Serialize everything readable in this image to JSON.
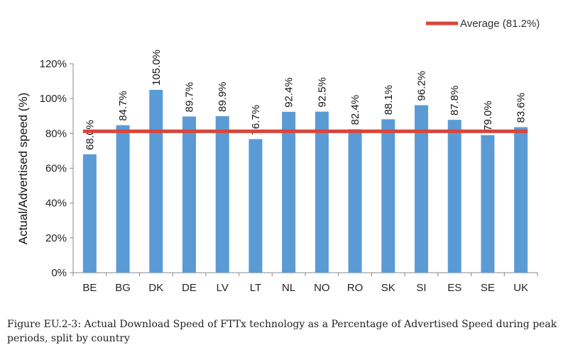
{
  "chart_data": {
    "type": "bar",
    "categories": [
      "BE",
      "BG",
      "DK",
      "DE",
      "LV",
      "LT",
      "NL",
      "NO",
      "RO",
      "SK",
      "SI",
      "ES",
      "SE",
      "UK"
    ],
    "values": [
      68.0,
      84.7,
      105.0,
      89.7,
      89.9,
      76.7,
      92.4,
      92.5,
      82.4,
      88.1,
      96.2,
      87.8,
      79.0,
      83.6
    ],
    "data_labels": [
      "68.0%",
      "84.7%",
      "105.0%",
      "89.7%",
      "89.9%",
      "76.7%",
      "92.4%",
      "92.5%",
      "82.4%",
      "88.1%",
      "96.2%",
      "87.8%",
      "79.0%",
      "83.6%"
    ],
    "average": 81.2,
    "average_label": "Average (81.2%)",
    "ylabel": "Actual/Advertised speed (%)",
    "xlabel": "",
    "ylim": [
      0,
      120
    ],
    "yticks": [
      0,
      20,
      40,
      60,
      80,
      100,
      120
    ],
    "ytick_labels": [
      "0%",
      "20%",
      "40%",
      "60%",
      "80%",
      "100%",
      "120%"
    ],
    "grid": false,
    "legend_position": "top-right",
    "colors": {
      "bar": "#5b9bd5",
      "average": "#d9453b",
      "axis": "#888888"
    }
  },
  "caption": "Figure EU.2-3: Actual Download Speed of FTTx technology as a Percentage of Advertised Speed during peak periods, split by country"
}
